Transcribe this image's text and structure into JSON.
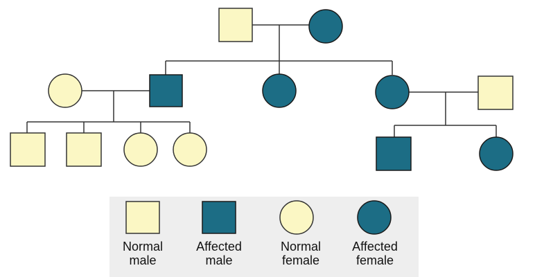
{
  "colors": {
    "normal_fill": "#fbf7c4",
    "affected_fill": "#1c6d85",
    "line": "#333333",
    "legend_background": "#eeeeee"
  },
  "pedigree": {
    "generations": [
      {
        "generation": 1,
        "individuals": [
          {
            "id": "I-1",
            "sex": "male",
            "status": "normal"
          },
          {
            "id": "I-2",
            "sex": "female",
            "status": "affected"
          }
        ]
      },
      {
        "generation": 2,
        "individuals": [
          {
            "id": "II-spouse-1",
            "sex": "female",
            "status": "normal",
            "married_in": true
          },
          {
            "id": "II-1",
            "sex": "male",
            "status": "affected"
          },
          {
            "id": "II-2",
            "sex": "female",
            "status": "affected"
          },
          {
            "id": "II-3",
            "sex": "female",
            "status": "affected"
          },
          {
            "id": "II-spouse-2",
            "sex": "male",
            "status": "normal",
            "married_in": true
          }
        ]
      },
      {
        "generation": 3,
        "individuals": [
          {
            "id": "III-1",
            "sex": "male",
            "status": "normal",
            "parents": "II-1 x II-spouse-1"
          },
          {
            "id": "III-2",
            "sex": "male",
            "status": "normal",
            "parents": "II-1 x II-spouse-1"
          },
          {
            "id": "III-3",
            "sex": "female",
            "status": "normal",
            "parents": "II-1 x II-spouse-1"
          },
          {
            "id": "III-4",
            "sex": "female",
            "status": "normal",
            "parents": "II-1 x II-spouse-1"
          },
          {
            "id": "III-5",
            "sex": "male",
            "status": "affected",
            "parents": "II-3 x II-spouse-2"
          },
          {
            "id": "III-6",
            "sex": "female",
            "status": "affected",
            "parents": "II-3 x II-spouse-2"
          }
        ]
      }
    ]
  },
  "legend": {
    "items": [
      {
        "symbol": "square",
        "status": "normal",
        "label": "Normal\nmale"
      },
      {
        "symbol": "square",
        "status": "affected",
        "label": "Affected\nmale"
      },
      {
        "symbol": "circle",
        "status": "normal",
        "label": "Normal\nfemale"
      },
      {
        "symbol": "circle",
        "status": "affected",
        "label": "Affected\nfemale"
      }
    ]
  }
}
